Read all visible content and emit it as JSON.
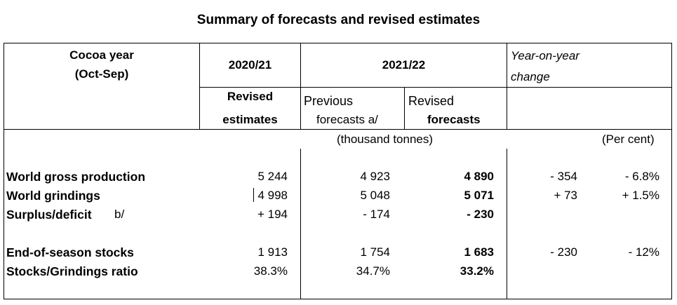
{
  "title": "Summary of forecasts and revised estimates",
  "header": {
    "cocoa_year_line1": "Cocoa year",
    "cocoa_year_line2": "(Oct-Sep)",
    "col_2020_21": "2020/21",
    "col_2021_22": "2021/22",
    "yoy_line1": "Year-on-year",
    "yoy_line2": "change",
    "revised_line1": "Revised",
    "revised_line2": "estimates",
    "previous_line1": "Previous",
    "previous_line2": "forecasts a/",
    "revised2_line1": "Revised",
    "revised2_line2": "forecasts",
    "units_tonnes": "(thousand tonnes)",
    "units_percent": "(Per cent)"
  },
  "rows": [
    {
      "label": "World gross production",
      "v2021": "5 244",
      "prev": "4 923",
      "rev": "4 890",
      "yoy_abs": "- 354",
      "yoy_pct": "- 6.8%"
    },
    {
      "label": "World grindings",
      "v2021": "4 998",
      "prev": "5 048",
      "rev": "5 071",
      "yoy_abs": "+ 73",
      "yoy_pct": "+ 1.5%"
    },
    {
      "label": "Surplus/deficit",
      "label_note": "b/",
      "v2021": "+ 194",
      "prev": "- 174",
      "rev": "- 230",
      "yoy_abs": "",
      "yoy_pct": ""
    },
    {
      "label": "End-of-season stocks",
      "v2021": "1 913",
      "prev": "1 754",
      "rev": "1 683",
      "yoy_abs": "- 230",
      "yoy_pct": "- 12%"
    },
    {
      "label": "Stocks/Grindings ratio",
      "v2021": "38.3%",
      "prev": "34.7%",
      "rev": "33.2%",
      "yoy_abs": "",
      "yoy_pct": ""
    }
  ]
}
